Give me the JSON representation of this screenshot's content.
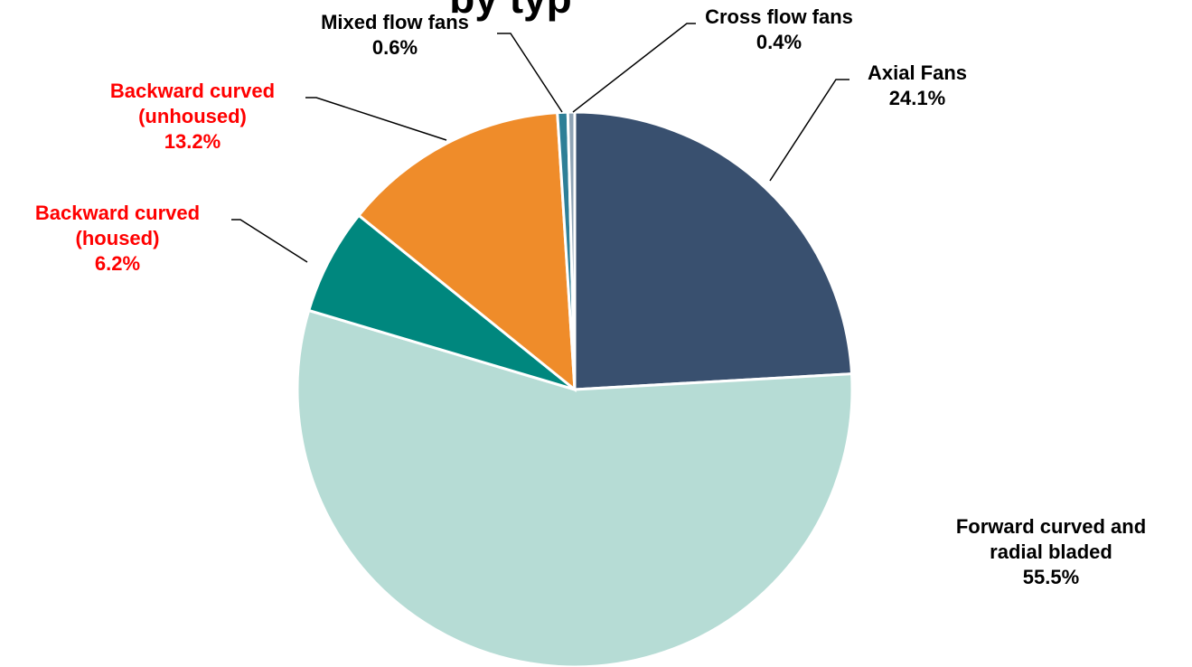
{
  "title_fragment": "by typ",
  "colors": {
    "label_default": "#000000",
    "label_highlight": "#ff0000",
    "slice_border": "#ffffff",
    "leader_line": "#000000"
  },
  "chart_data": {
    "type": "pie",
    "start_angle_deg": 0,
    "direction": "clockwise",
    "legend": "none",
    "slices": [
      {
        "name": "Axial Fans",
        "label_lines": [
          "Axial Fans"
        ],
        "percent_text": "24.1%",
        "value": 24.1,
        "color": "#39506f",
        "label_color": "#000000"
      },
      {
        "name": "Forward curved and radial bladed",
        "label_lines": [
          "Forward curved and",
          "radial bladed"
        ],
        "percent_text": "55.5%",
        "value": 55.5,
        "color": "#b6dcd5",
        "label_color": "#000000"
      },
      {
        "name": "Backward curved (housed)",
        "label_lines": [
          "Backward curved",
          "(housed)"
        ],
        "percent_text": "6.2%",
        "value": 6.2,
        "color": "#00877e",
        "label_color": "#ff0000"
      },
      {
        "name": "Backward curved (unhoused)",
        "label_lines": [
          "Backward curved",
          "(unhoused)"
        ],
        "percent_text": "13.2%",
        "value": 13.2,
        "color": "#ef8c2a",
        "label_color": "#ff0000"
      },
      {
        "name": "Mixed flow fans",
        "label_lines": [
          "Mixed flow fans"
        ],
        "percent_text": "0.6%",
        "value": 0.6,
        "color": "#2e7f97",
        "label_color": "#000000"
      },
      {
        "name": "Cross flow fans",
        "label_lines": [
          "Cross flow fans"
        ],
        "percent_text": "0.4%",
        "value": 0.4,
        "color": "#8fa3b5",
        "label_color": "#000000"
      }
    ]
  }
}
